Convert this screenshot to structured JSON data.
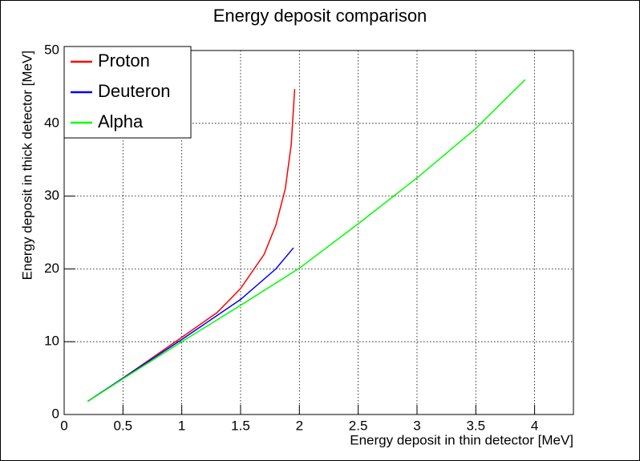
{
  "chart_data": {
    "type": "line",
    "title": "Energy deposit comparison",
    "x_label": "Energy deposit in thin detector [MeV]",
    "y_label": "Energy deposit in thick detector [MeV]",
    "xlim": [
      0,
      4.33
    ],
    "ylim": [
      0,
      50
    ],
    "xticks": [
      0,
      0.5,
      1,
      1.5,
      2,
      2.5,
      3,
      3.5,
      4
    ],
    "yticks": [
      0,
      10,
      20,
      30,
      40,
      50
    ],
    "grid": true,
    "legend": "top-left",
    "series": [
      {
        "name": "Proton",
        "color": "#ff0000",
        "x": [
          0.2,
          0.5,
          1,
          1.3,
          1.5,
          1.7,
          1.8,
          1.88,
          1.93,
          1.96
        ],
        "values": [
          1.8,
          5,
          10.6,
          14,
          17.3,
          22,
          26,
          31,
          37,
          44.7
        ]
      },
      {
        "name": "Deuteron",
        "color": "#0000ff",
        "x": [
          0.2,
          0.5,
          1,
          1.5,
          1.8,
          1.95
        ],
        "values": [
          1.8,
          5,
          10.3,
          15.8,
          20,
          22.9
        ]
      },
      {
        "name": "Alpha",
        "color": "#00ff00",
        "x": [
          0.2,
          0.5,
          1,
          1.5,
          2,
          2.5,
          3,
          3.5,
          3.92
        ],
        "values": [
          1.8,
          4.9,
          10,
          15,
          20.1,
          26.2,
          32.5,
          39.3,
          46
        ]
      }
    ]
  }
}
